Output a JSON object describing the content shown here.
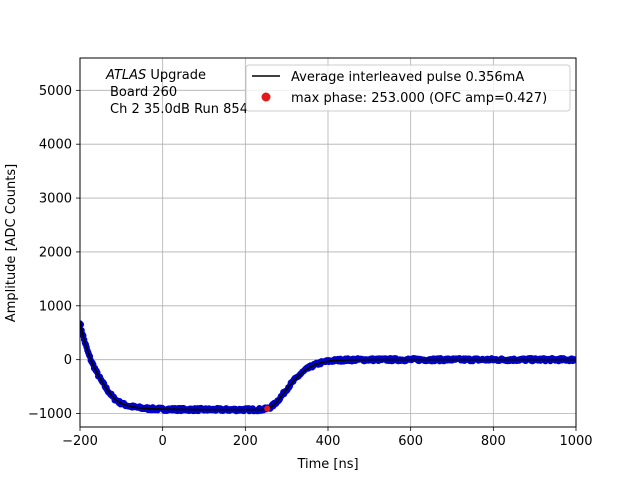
{
  "chart_data": {
    "type": "line",
    "xlabel": "Time [ns]",
    "ylabel": "Amplitude [ADC Counts]",
    "xlim": [
      -200,
      1000
    ],
    "ylim": [
      -1250,
      5600
    ],
    "x_ticks": [
      -200,
      0,
      200,
      400,
      600,
      800,
      1000
    ],
    "x_tick_labels": [
      "−200",
      "0",
      "200",
      "400",
      "600",
      "800",
      "1000"
    ],
    "y_ticks": [
      -1000,
      0,
      1000,
      2000,
      3000,
      4000,
      5000
    ],
    "y_tick_labels": [
      "−1000",
      "0",
      "1000",
      "2000",
      "3000",
      "4000",
      "5000"
    ],
    "grid": true,
    "legend_placement": "top-right",
    "annotation": {
      "line1_italic": "ATLAS",
      "line1_rest": " Upgrade",
      "line2": "Board 260",
      "line3": "Ch 2 35.0dB  Run 854"
    },
    "series": [
      {
        "name": "Average interleaved pulse 0.356mA",
        "style": "line",
        "color": "#000000",
        "points": [
          [
            -200,
            700
          ],
          [
            -195,
            520
          ],
          [
            -190,
            370
          ],
          [
            -185,
            240
          ],
          [
            -180,
            120
          ],
          [
            -175,
            20
          ],
          [
            -170,
            -70
          ],
          [
            -165,
            -150
          ],
          [
            -160,
            -230
          ],
          [
            -155,
            -300
          ],
          [
            -150,
            -370
          ],
          [
            -145,
            -430
          ],
          [
            -140,
            -490
          ],
          [
            -135,
            -550
          ],
          [
            -130,
            -600
          ],
          [
            -125,
            -650
          ],
          [
            -120,
            -700
          ],
          [
            -115,
            -735
          ],
          [
            -110,
            -765
          ],
          [
            -105,
            -790
          ],
          [
            -100,
            -810
          ],
          [
            -95,
            -826
          ],
          [
            -90,
            -840
          ],
          [
            -85,
            -852
          ],
          [
            -80,
            -862
          ],
          [
            -75,
            -870
          ],
          [
            -70,
            -878
          ],
          [
            -65,
            -885
          ],
          [
            -60,
            -890
          ],
          [
            -55,
            -895
          ],
          [
            -50,
            -899
          ],
          [
            -40,
            -906
          ],
          [
            -30,
            -911
          ],
          [
            -20,
            -914
          ],
          [
            -10,
            -917
          ],
          [
            0,
            -919
          ],
          [
            20,
            -922
          ],
          [
            40,
            -924
          ],
          [
            60,
            -925
          ],
          [
            80,
            -926
          ],
          [
            100,
            -927
          ],
          [
            120,
            -927
          ],
          [
            140,
            -928
          ],
          [
            160,
            -928
          ],
          [
            180,
            -928
          ],
          [
            200,
            -928
          ],
          [
            220,
            -928
          ],
          [
            235,
            -927
          ],
          [
            245,
            -922
          ],
          [
            250,
            -915
          ],
          [
            255,
            -903
          ],
          [
            260,
            -885
          ],
          [
            265,
            -860
          ],
          [
            270,
            -828
          ],
          [
            275,
            -790
          ],
          [
            280,
            -748
          ],
          [
            285,
            -700
          ],
          [
            290,
            -650
          ],
          [
            295,
            -600
          ],
          [
            300,
            -550
          ],
          [
            305,
            -500
          ],
          [
            310,
            -455
          ],
          [
            315,
            -410
          ],
          [
            320,
            -368
          ],
          [
            325,
            -330
          ],
          [
            330,
            -292
          ],
          [
            335,
            -258
          ],
          [
            340,
            -226
          ],
          [
            345,
            -196
          ],
          [
            350,
            -170
          ],
          [
            355,
            -146
          ],
          [
            360,
            -125
          ],
          [
            365,
            -107
          ],
          [
            370,
            -90
          ],
          [
            375,
            -77
          ],
          [
            380,
            -64
          ],
          [
            385,
            -53
          ],
          [
            390,
            -44
          ],
          [
            400,
            -30
          ],
          [
            410,
            -20
          ],
          [
            420,
            -13
          ],
          [
            430,
            -8
          ],
          [
            440,
            -5
          ],
          [
            450,
            -3
          ],
          [
            470,
            -1
          ],
          [
            500,
            0
          ],
          [
            550,
            0
          ],
          [
            600,
            0
          ],
          [
            650,
            0
          ],
          [
            700,
            0
          ],
          [
            750,
            0
          ],
          [
            800,
            0
          ],
          [
            850,
            0
          ],
          [
            900,
            0
          ],
          [
            950,
            0
          ],
          [
            1000,
            0
          ]
        ]
      },
      {
        "name": "max phase: 253.000 (OFC amp=0.427)",
        "style": "marker",
        "color": "#e31a1c",
        "points": [
          [
            253,
            -908
          ]
        ]
      }
    ],
    "samples": {
      "color": "#0000cc",
      "x_start": -200,
      "x_end": 1000,
      "x_step": 2,
      "noise_amplitude": 28
    }
  }
}
